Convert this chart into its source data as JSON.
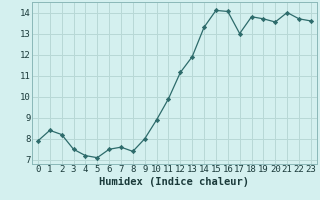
{
  "x": [
    0,
    1,
    2,
    3,
    4,
    5,
    6,
    7,
    8,
    9,
    10,
    11,
    12,
    13,
    14,
    15,
    16,
    17,
    18,
    19,
    20,
    21,
    22,
    23
  ],
  "y": [
    7.9,
    8.4,
    8.2,
    7.5,
    7.2,
    7.1,
    7.5,
    7.6,
    7.4,
    8.0,
    8.9,
    9.9,
    11.15,
    11.9,
    13.3,
    14.1,
    14.05,
    13.0,
    13.8,
    13.7,
    13.55,
    14.0,
    13.7,
    13.6
  ],
  "xlabel": "Humidex (Indice chaleur)",
  "ylim": [
    6.8,
    14.5
  ],
  "xlim": [
    -0.5,
    23.5
  ],
  "yticks": [
    7,
    8,
    9,
    10,
    11,
    12,
    13,
    14
  ],
  "xticks": [
    0,
    1,
    2,
    3,
    4,
    5,
    6,
    7,
    8,
    9,
    10,
    11,
    12,
    13,
    14,
    15,
    16,
    17,
    18,
    19,
    20,
    21,
    22,
    23
  ],
  "line_color": "#2d6b6b",
  "marker_color": "#2d6b6b",
  "bg_color": "#d4f0ef",
  "grid_color": "#b8d8d6",
  "tick_label_fontsize": 6.5,
  "xlabel_fontsize": 7.5
}
